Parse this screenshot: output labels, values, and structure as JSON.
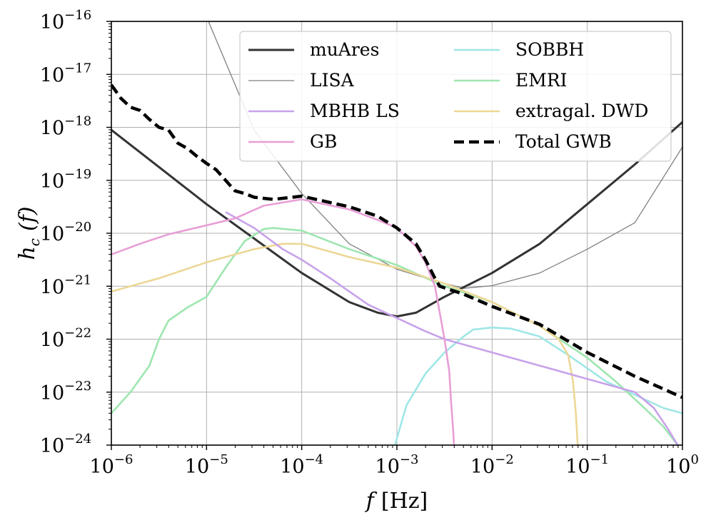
{
  "chart_data": {
    "type": "line",
    "title": "",
    "xlabel": {
      "var": "f",
      "unit": "[Hz]"
    },
    "ylabel": {
      "var": "h",
      "sub": "c",
      "arg": "(f)"
    },
    "xscale": "log",
    "yscale": "log",
    "xlim_exp": [
      -6,
      0
    ],
    "ylim_exp": [
      -24,
      -16
    ],
    "grid": true,
    "x_ticks": [
      {
        "base": "10",
        "exp": "−6"
      },
      {
        "base": "10",
        "exp": "−5"
      },
      {
        "base": "10",
        "exp": "−4"
      },
      {
        "base": "10",
        "exp": "−3"
      },
      {
        "base": "10",
        "exp": "−2"
      },
      {
        "base": "10",
        "exp": "−1"
      },
      {
        "base": "10",
        "exp": "0"
      }
    ],
    "y_ticks": [
      {
        "base": "10",
        "exp": "−24"
      },
      {
        "base": "10",
        "exp": "−23"
      },
      {
        "base": "10",
        "exp": "−22"
      },
      {
        "base": "10",
        "exp": "−21"
      },
      {
        "base": "10",
        "exp": "−20"
      },
      {
        "base": "10",
        "exp": "−19"
      },
      {
        "base": "10",
        "exp": "−18"
      },
      {
        "base": "10",
        "exp": "−17"
      },
      {
        "base": "10",
        "exp": "−16"
      }
    ],
    "legend_position": "top-right",
    "legend_columns": 2,
    "series": [
      {
        "name": "muAres",
        "color": "#333333",
        "style": "solid",
        "weight": "thick",
        "log10_points": [
          [
            -6,
            -18.05
          ],
          [
            -5.5,
            -18.75
          ],
          [
            -5,
            -19.45
          ],
          [
            -4.5,
            -20.1
          ],
          [
            -4,
            -20.75
          ],
          [
            -3.5,
            -21.3
          ],
          [
            -3.2,
            -21.5
          ],
          [
            -3,
            -21.57
          ],
          [
            -2.8,
            -21.5
          ],
          [
            -2.5,
            -21.2
          ],
          [
            -2,
            -20.75
          ],
          [
            -1.5,
            -20.2
          ],
          [
            -1,
            -19.45
          ],
          [
            -0.5,
            -18.7
          ],
          [
            0,
            -17.9
          ]
        ]
      },
      {
        "name": "LISA",
        "color": "#808080",
        "style": "solid",
        "weight": "thin",
        "log10_points": [
          [
            -4.98,
            -16
          ],
          [
            -4.5,
            -18.05
          ],
          [
            -4,
            -19.25
          ],
          [
            -3.5,
            -20.2
          ],
          [
            -3,
            -20.68
          ],
          [
            -2.6,
            -20.9
          ],
          [
            -2.3,
            -21.04
          ],
          [
            -2,
            -20.99
          ],
          [
            -1.5,
            -20.75
          ],
          [
            -1,
            -20.3
          ],
          [
            -0.5,
            -19.8
          ],
          [
            0,
            -18.37
          ]
        ]
      },
      {
        "name": "MBHB LS",
        "color": "#c8a2ea",
        "style": "solid",
        "weight": "medium",
        "log10_points": [
          [
            -4.8,
            -19.6
          ],
          [
            -4.5,
            -19.9
          ],
          [
            -4.2,
            -20.3
          ],
          [
            -4,
            -20.5
          ],
          [
            -3.7,
            -20.85
          ],
          [
            -3.5,
            -21.1
          ],
          [
            -3.3,
            -21.35
          ],
          [
            -3,
            -21.6
          ],
          [
            -2.7,
            -21.85
          ],
          [
            -2.5,
            -22.0
          ],
          [
            -2,
            -22.25
          ],
          [
            -1.5,
            -22.5
          ],
          [
            -1,
            -22.75
          ],
          [
            -0.5,
            -23.0
          ],
          [
            -0.3,
            -23.3
          ],
          [
            -0.15,
            -23.7
          ],
          [
            -0.05,
            -24
          ]
        ]
      },
      {
        "name": "GB",
        "color": "#e89ed6",
        "style": "solid",
        "weight": "medium",
        "log10_points": [
          [
            -6,
            -20.4
          ],
          [
            -5.7,
            -20.2
          ],
          [
            -5.4,
            -20.02
          ],
          [
            -5,
            -19.85
          ],
          [
            -4.7,
            -19.72
          ],
          [
            -4.4,
            -19.48
          ],
          [
            -4.2,
            -19.42
          ],
          [
            -4,
            -19.36
          ],
          [
            -3.5,
            -19.55
          ],
          [
            -3.2,
            -19.75
          ],
          [
            -3,
            -19.9
          ],
          [
            -2.8,
            -20.25
          ],
          [
            -2.7,
            -20.55
          ],
          [
            -2.6,
            -21.0
          ],
          [
            -2.55,
            -21.5
          ],
          [
            -2.5,
            -22.0
          ],
          [
            -2.45,
            -22.6
          ],
          [
            -2.43,
            -23.2
          ],
          [
            -2.41,
            -23.7
          ],
          [
            -2.4,
            -24
          ]
        ]
      },
      {
        "name": "SOBBH",
        "color": "#9fe6e6",
        "style": "solid",
        "weight": "medium",
        "log10_points": [
          [
            -3.02,
            -24
          ],
          [
            -2.9,
            -23.25
          ],
          [
            -2.7,
            -22.65
          ],
          [
            -2.5,
            -22.25
          ],
          [
            -2.3,
            -21.95
          ],
          [
            -2.2,
            -21.82
          ],
          [
            -2.0,
            -21.78
          ],
          [
            -1.8,
            -21.8
          ],
          [
            -1.5,
            -21.95
          ],
          [
            -1.2,
            -22.3
          ],
          [
            -1,
            -22.55
          ],
          [
            -0.8,
            -22.8
          ],
          [
            -0.5,
            -23.05
          ],
          [
            -0.2,
            -23.3
          ],
          [
            0,
            -23.4
          ]
        ]
      },
      {
        "name": "EMRI",
        "color": "#9ee6b0",
        "style": "solid",
        "weight": "medium",
        "log10_points": [
          [
            -6,
            -23.4
          ],
          [
            -5.8,
            -23.0
          ],
          [
            -5.6,
            -22.5
          ],
          [
            -5.5,
            -22.0
          ],
          [
            -5.4,
            -21.65
          ],
          [
            -5.2,
            -21.4
          ],
          [
            -5,
            -21.2
          ],
          [
            -4.8,
            -20.65
          ],
          [
            -4.6,
            -20.15
          ],
          [
            -4.4,
            -19.92
          ],
          [
            -4.3,
            -19.9
          ],
          [
            -4,
            -19.95
          ],
          [
            -3.5,
            -20.3
          ],
          [
            -3,
            -20.6
          ],
          [
            -2.5,
            -21.0
          ],
          [
            -2,
            -21.3
          ],
          [
            -1.5,
            -21.75
          ],
          [
            -1,
            -22.35
          ],
          [
            -0.7,
            -22.8
          ],
          [
            -0.4,
            -23.3
          ],
          [
            -0.2,
            -23.65
          ],
          [
            -0.05,
            -24
          ]
        ]
      },
      {
        "name": "extragal. DWD",
        "color": "#ecd796",
        "style": "solid",
        "weight": "medium",
        "log10_points": [
          [
            -6,
            -21.1
          ],
          [
            -5.5,
            -20.85
          ],
          [
            -5,
            -20.55
          ],
          [
            -4.5,
            -20.3
          ],
          [
            -4.2,
            -20.2
          ],
          [
            -4,
            -20.2
          ],
          [
            -3.5,
            -20.45
          ],
          [
            -3,
            -20.65
          ],
          [
            -2.5,
            -20.95
          ],
          [
            -2,
            -21.3
          ],
          [
            -1.5,
            -21.75
          ],
          [
            -1.3,
            -22.0
          ],
          [
            -1.2,
            -22.3
          ],
          [
            -1.15,
            -22.8
          ],
          [
            -1.12,
            -23.4
          ],
          [
            -1.1,
            -24
          ]
        ]
      },
      {
        "name": "Total GWB",
        "color": "#000000",
        "style": "dashed",
        "weight": "bold",
        "log10_points": [
          [
            -6,
            -17.2
          ],
          [
            -5.9,
            -17.45
          ],
          [
            -5.8,
            -17.62
          ],
          [
            -5.7,
            -17.68
          ],
          [
            -5.6,
            -17.85
          ],
          [
            -5.5,
            -18.0
          ],
          [
            -5.4,
            -18.05
          ],
          [
            -5.3,
            -18.3
          ],
          [
            -5.2,
            -18.4
          ],
          [
            -5.1,
            -18.55
          ],
          [
            -5,
            -18.68
          ],
          [
            -4.9,
            -18.8
          ],
          [
            -4.8,
            -19.0
          ],
          [
            -4.7,
            -19.2
          ],
          [
            -4.6,
            -19.25
          ],
          [
            -4.5,
            -19.32
          ],
          [
            -4.3,
            -19.36
          ],
          [
            -4,
            -19.3
          ],
          [
            -3.8,
            -19.38
          ],
          [
            -3.5,
            -19.5
          ],
          [
            -3.2,
            -19.68
          ],
          [
            -3,
            -19.9
          ],
          [
            -2.8,
            -20.2
          ],
          [
            -2.7,
            -20.5
          ],
          [
            -2.6,
            -20.85
          ],
          [
            -2.55,
            -21.0
          ],
          [
            -2.3,
            -21.15
          ],
          [
            -2,
            -21.38
          ],
          [
            -1.5,
            -21.72
          ],
          [
            -1,
            -22.25
          ],
          [
            -0.5,
            -22.7
          ],
          [
            0,
            -23.1
          ]
        ]
      }
    ]
  }
}
